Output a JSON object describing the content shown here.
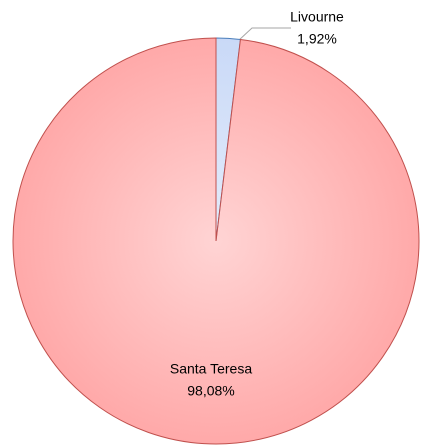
{
  "chart_data": {
    "type": "pie",
    "categories": [
      "Livourne",
      "Santa Teresa"
    ],
    "values": [
      1.92,
      98.08
    ],
    "value_labels": [
      "1,92%",
      "98,08%"
    ],
    "colors": [
      "#c9d9f7",
      "#ffa9a9"
    ],
    "edge_colors": [
      "#4a7ebb",
      "#c0504d"
    ]
  }
}
